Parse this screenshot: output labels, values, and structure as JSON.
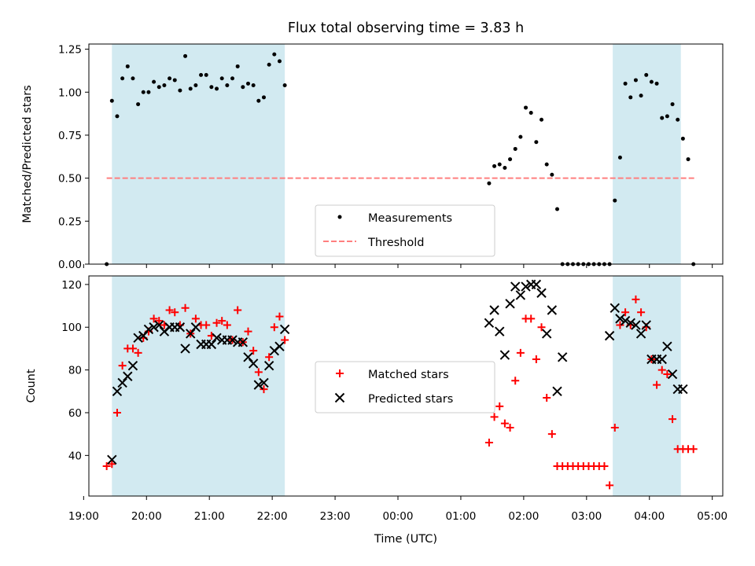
{
  "colors": {
    "shade": "#add8e6",
    "measurement": "#000000",
    "threshold": "#ff7f7f",
    "matched": "#ff0000",
    "predicted": "#000000"
  },
  "chart_data": [
    {
      "type": "scatter",
      "title": "Flux total observing time = 3.83 h",
      "xlabel": "",
      "ylabel": "Matched/Predicted stars",
      "ylim": [
        0,
        1.28
      ],
      "xlim": [
        "19:05",
        "05:10"
      ],
      "yticks": [
        "0.00",
        "0.25",
        "0.50",
        "0.75",
        "1.00",
        "1.25"
      ],
      "ytick_values": [
        0,
        0.25,
        0.5,
        0.75,
        1.0,
        1.25
      ],
      "legend": {
        "location": "lower-center",
        "entries": [
          "Measurements",
          "Threshold"
        ]
      },
      "shaded_intervals": [
        [
          "19:27",
          "22:12"
        ],
        [
          "03:25",
          "04:30"
        ]
      ],
      "threshold": {
        "name": "Threshold",
        "x": [
          "19:22",
          "04:45"
        ],
        "y": 0.5
      },
      "series": [
        {
          "name": "Measurements",
          "x": [
            "19:22",
            "19:27",
            "19:32",
            "19:37",
            "19:42",
            "19:47",
            "19:52",
            "19:57",
            "20:02",
            "20:07",
            "20:12",
            "20:17",
            "20:22",
            "20:27",
            "20:32",
            "20:37",
            "20:42",
            "20:47",
            "20:52",
            "20:57",
            "21:02",
            "21:07",
            "21:12",
            "21:17",
            "21:22",
            "21:27",
            "21:32",
            "21:37",
            "21:42",
            "21:47",
            "21:52",
            "21:57",
            "22:02",
            "22:07",
            "22:12",
            "01:27",
            "01:32",
            "01:37",
            "01:42",
            "01:47",
            "01:52",
            "01:57",
            "02:02",
            "02:07",
            "02:12",
            "02:17",
            "02:22",
            "02:27",
            "02:32",
            "02:37",
            "02:42",
            "02:47",
            "02:52",
            "02:57",
            "03:02",
            "03:07",
            "03:12",
            "03:17",
            "03:22",
            "03:27",
            "03:32",
            "03:37",
            "03:42",
            "03:47",
            "03:52",
            "03:57",
            "04:02",
            "04:07",
            "04:12",
            "04:17",
            "04:22",
            "04:27",
            "04:32",
            "04:37",
            "04:42"
          ],
          "y": [
            0.0,
            0.95,
            0.86,
            1.08,
            1.15,
            1.08,
            0.93,
            1.0,
            1.0,
            1.06,
            1.03,
            1.04,
            1.08,
            1.07,
            1.01,
            1.21,
            1.02,
            1.04,
            1.1,
            1.1,
            1.03,
            1.02,
            1.08,
            1.04,
            1.08,
            1.15,
            1.03,
            1.05,
            1.04,
            0.95,
            0.97,
            1.16,
            1.22,
            1.18,
            1.04,
            0.47,
            0.57,
            0.58,
            0.56,
            0.61,
            0.67,
            0.74,
            0.91,
            0.88,
            0.71,
            0.84,
            0.58,
            0.52,
            0.32,
            0.0,
            0.0,
            0.0,
            0.0,
            0.0,
            0.0,
            0.0,
            0.0,
            0.0,
            0.0,
            0.37,
            0.62,
            1.05,
            0.97,
            1.07,
            0.98,
            1.1,
            1.06,
            1.05,
            0.85,
            0.86,
            0.93,
            0.84,
            0.73,
            0.61,
            0.0
          ]
        }
      ]
    },
    {
      "type": "scatter",
      "title": "",
      "xlabel": "Time (UTC)",
      "ylabel": "Count",
      "ylim": [
        21,
        124
      ],
      "xlim": [
        "19:05",
        "05:10"
      ],
      "yticks": [
        "40",
        "60",
        "80",
        "100",
        "120"
      ],
      "ytick_values": [
        40,
        60,
        80,
        100,
        120
      ],
      "xticks": [
        "19:00",
        "20:00",
        "21:00",
        "22:00",
        "23:00",
        "00:00",
        "01:00",
        "02:00",
        "03:00",
        "04:00",
        "05:00"
      ],
      "legend": {
        "location": "center",
        "entries": [
          "Matched stars",
          "Predicted stars"
        ]
      },
      "shaded_intervals": [
        [
          "19:27",
          "22:12"
        ],
        [
          "03:25",
          "04:30"
        ]
      ],
      "series": [
        {
          "name": "Matched stars",
          "x": [
            "19:22",
            "19:27",
            "19:32",
            "19:37",
            "19:42",
            "19:47",
            "19:52",
            "19:57",
            "20:02",
            "20:07",
            "20:12",
            "20:17",
            "20:22",
            "20:27",
            "20:32",
            "20:37",
            "20:42",
            "20:47",
            "20:52",
            "20:57",
            "21:02",
            "21:07",
            "21:12",
            "21:17",
            "21:22",
            "21:27",
            "21:32",
            "21:37",
            "21:42",
            "21:47",
            "21:52",
            "21:57",
            "22:02",
            "22:07",
            "22:12",
            "01:27",
            "01:32",
            "01:37",
            "01:42",
            "01:47",
            "01:52",
            "01:57",
            "02:02",
            "02:07",
            "02:12",
            "02:17",
            "02:22",
            "02:27",
            "02:32",
            "02:37",
            "02:42",
            "02:47",
            "02:52",
            "02:57",
            "03:02",
            "03:07",
            "03:12",
            "03:17",
            "03:22",
            "03:27",
            "03:32",
            "03:37",
            "03:42",
            "03:47",
            "03:52",
            "03:57",
            "04:02",
            "04:07",
            "04:12",
            "04:17",
            "04:22",
            "04:27",
            "04:32",
            "04:37",
            "04:42"
          ],
          "y": [
            35,
            36,
            60,
            82,
            90,
            90,
            88,
            95,
            98,
            104,
            103,
            101,
            108,
            107,
            101,
            109,
            97,
            104,
            101,
            101,
            96,
            102,
            103,
            101,
            94,
            108,
            93,
            98,
            89,
            79,
            71,
            86,
            100,
            105,
            94,
            46,
            58,
            63,
            55,
            53,
            75,
            88,
            104,
            104,
            85,
            100,
            67,
            50,
            35,
            35,
            35,
            35,
            35,
            35,
            35,
            35,
            35,
            35,
            26,
            53,
            101,
            107,
            101,
            113,
            107,
            100,
            85,
            73,
            80,
            78,
            57,
            43,
            43,
            43,
            43
          ]
        },
        {
          "name": "Predicted stars",
          "x": [
            "19:27",
            "19:32",
            "19:37",
            "19:42",
            "19:47",
            "19:52",
            "19:57",
            "20:02",
            "20:07",
            "20:12",
            "20:17",
            "20:22",
            "20:27",
            "20:32",
            "20:37",
            "20:42",
            "20:47",
            "20:52",
            "20:57",
            "21:02",
            "21:07",
            "21:12",
            "21:17",
            "21:22",
            "21:27",
            "21:32",
            "21:37",
            "21:42",
            "21:47",
            "21:52",
            "21:57",
            "22:02",
            "22:07",
            "22:12",
            "01:27",
            "01:32",
            "01:37",
            "01:42",
            "01:47",
            "01:52",
            "01:57",
            "02:02",
            "02:07",
            "02:12",
            "02:17",
            "02:22",
            "02:27",
            "02:32",
            "02:37",
            "03:22",
            "03:27",
            "03:32",
            "03:37",
            "03:42",
            "03:47",
            "03:52",
            "03:57",
            "04:02",
            "04:07",
            "04:12",
            "04:17",
            "04:22",
            "04:27",
            "04:32"
          ],
          "y": [
            38,
            70,
            74,
            77,
            82,
            95,
            96,
            99,
            100,
            101,
            98,
            100,
            100,
            100,
            90,
            97,
            100,
            92,
            92,
            92,
            95,
            94,
            94,
            94,
            93,
            93,
            86,
            83,
            73,
            74,
            82,
            89,
            91,
            99,
            102,
            108,
            98,
            87,
            111,
            119,
            115,
            119,
            120,
            120,
            116,
            97,
            108,
            70,
            86,
            96,
            109,
            104,
            103,
            102,
            101,
            97,
            101,
            85,
            85,
            85,
            91,
            78,
            71,
            71
          ]
        }
      ]
    }
  ]
}
